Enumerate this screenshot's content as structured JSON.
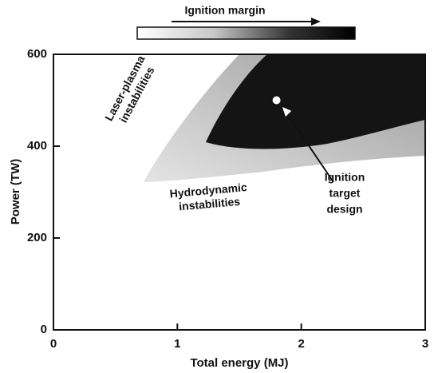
{
  "chart_data": {
    "type": "region",
    "title": "Ignition margin",
    "xlabel": "Total energy (MJ)",
    "ylabel": "Power (TW)",
    "xlim": [
      0,
      3
    ],
    "ylim": [
      0,
      600
    ],
    "xticks": [
      0,
      1,
      2,
      3
    ],
    "yticks": [
      0,
      200,
      400,
      600
    ],
    "annotations": [
      [
        "Laser-plasma",
        "instabilities"
      ],
      [
        "Hydrodynamic",
        "instabilities"
      ],
      [
        "Ignition",
        "target",
        "design"
      ]
    ],
    "point": {
      "x": 1.8,
      "y": 500
    }
  }
}
